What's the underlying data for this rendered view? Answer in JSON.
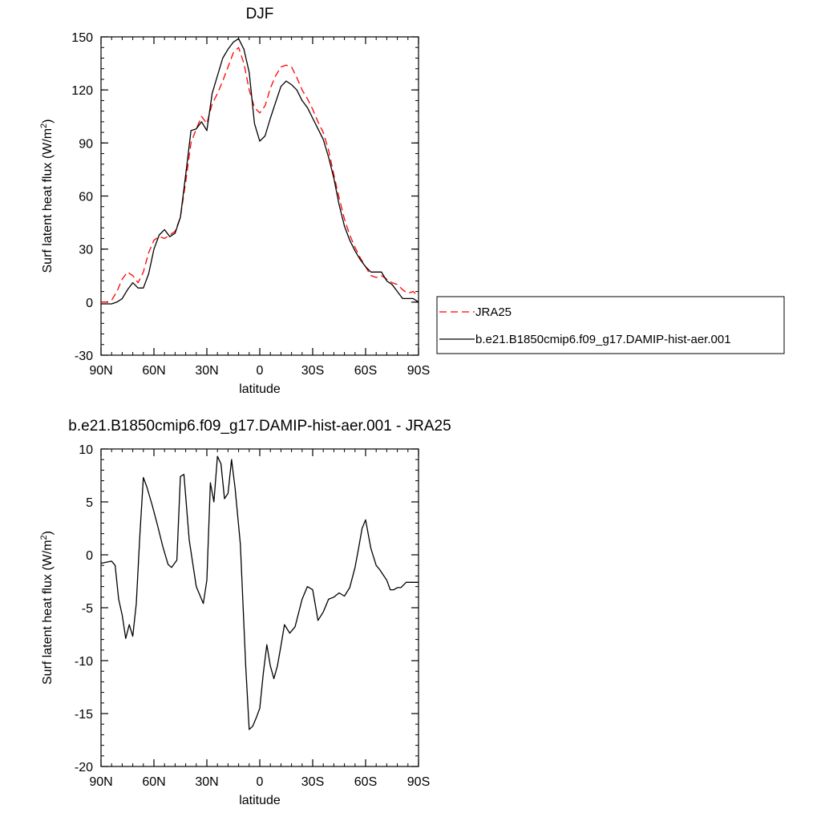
{
  "chart_data": [
    {
      "type": "line",
      "title": "DJF",
      "xlabel": "latitude",
      "ylabel": "Surf latent heat flux (W/m²)",
      "ylabel_parts": {
        "main": "Surf latent heat flux (W/m",
        "sup": "2",
        "end": ")"
      },
      "xlim": [
        90,
        -90
      ],
      "ylim": [
        -30,
        150
      ],
      "x_ticks": [
        90,
        60,
        30,
        0,
        -30,
        -60,
        -90
      ],
      "x_tick_labels": [
        "90N",
        "60N",
        "30N",
        "0",
        "30S",
        "60S",
        "90S"
      ],
      "y_ticks": [
        -30,
        0,
        30,
        60,
        90,
        120,
        150
      ],
      "y_tick_labels": [
        "-30",
        "0",
        "30",
        "60",
        "90",
        "120",
        "150"
      ],
      "legend": "outside-right",
      "series": [
        {
          "name": "JRA25",
          "color": "#ff0000",
          "style": "dashed",
          "x": [
            90,
            87,
            84,
            81,
            78,
            75,
            72,
            69,
            66,
            63,
            60,
            57,
            54,
            51,
            48,
            45,
            42,
            39,
            36,
            33,
            30,
            27,
            24,
            21,
            18,
            15,
            12,
            9,
            6,
            3,
            0,
            -3,
            -6,
            -9,
            -12,
            -15,
            -18,
            -21,
            -24,
            -27,
            -30,
            -33,
            -36,
            -39,
            -42,
            -45,
            -48,
            -51,
            -54,
            -57,
            -60,
            -63,
            -66,
            -69,
            -72,
            -75,
            -78,
            -81,
            -84,
            -87,
            -90
          ],
          "y": [
            0,
            0,
            1,
            6,
            13,
            17,
            15,
            11,
            17,
            28,
            35,
            37,
            36,
            38,
            40,
            48,
            68,
            90,
            98,
            105,
            101,
            112,
            118,
            125,
            133,
            141,
            144,
            135,
            120,
            110,
            107,
            111,
            121,
            128,
            133,
            134,
            133,
            127,
            120,
            115,
            109,
            102,
            96,
            86,
            72,
            59,
            47,
            38,
            31,
            25,
            20,
            15,
            14,
            15,
            13,
            11,
            10,
            7,
            5,
            6,
            3
          ]
        },
        {
          "name": "b.e21.B1850cmip6.f09_g17.DAMIP-hist-aer.001",
          "color": "#000000",
          "style": "solid",
          "x": [
            90,
            87,
            84,
            81,
            78,
            75,
            72,
            69,
            66,
            63,
            60,
            57,
            54,
            51,
            48,
            45,
            42,
            39,
            36,
            33,
            30,
            27,
            24,
            21,
            18,
            15,
            12,
            9,
            6,
            3,
            0,
            -3,
            -6,
            -9,
            -12,
            -15,
            -18,
            -21,
            -24,
            -27,
            -30,
            -33,
            -36,
            -39,
            -42,
            -45,
            -48,
            -51,
            -54,
            -57,
            -60,
            -63,
            -66,
            -69,
            -72,
            -75,
            -78,
            -81,
            -84,
            -87,
            -90
          ],
          "y": [
            -1,
            -1,
            -1,
            0,
            2,
            7,
            11,
            8,
            8,
            16,
            30,
            38,
            41,
            37,
            39,
            48,
            72,
            97,
            98,
            102,
            97,
            118,
            128,
            138,
            143,
            147,
            149,
            143,
            130,
            101,
            91,
            94,
            104,
            113,
            122,
            125,
            123,
            120,
            114,
            110,
            104,
            98,
            92,
            82,
            70,
            55,
            43,
            35,
            29,
            24,
            20,
            17,
            17,
            17,
            12,
            10,
            6,
            2,
            2,
            2,
            0
          ]
        }
      ]
    },
    {
      "type": "line",
      "title": "b.e21.B1850cmip6.f09_g17.DAMIP-hist-aer.001 - JRA25",
      "xlabel": "latitude",
      "ylabel": "Surf latent heat flux (W/m²)",
      "ylabel_parts": {
        "main": "Surf latent heat flux (W/m",
        "sup": "2",
        "end": ")"
      },
      "xlim": [
        90,
        -90
      ],
      "ylim": [
        -20,
        10
      ],
      "x_ticks": [
        90,
        60,
        30,
        0,
        -30,
        -60,
        -90
      ],
      "x_tick_labels": [
        "90N",
        "60N",
        "30N",
        "0",
        "30S",
        "60S",
        "90S"
      ],
      "y_ticks": [
        -20,
        -15,
        -10,
        -5,
        0,
        5,
        10
      ],
      "y_tick_labels": [
        "-20",
        "-15",
        "-10",
        "-5",
        "0",
        "5",
        "10"
      ],
      "series": [
        {
          "color": "#000000",
          "style": "solid",
          "x": [
            90,
            87,
            84,
            82,
            80,
            78,
            76,
            74,
            72,
            70,
            68,
            66,
            64,
            61,
            58,
            55,
            52,
            50,
            47,
            45,
            43,
            40,
            36,
            32,
            30,
            28,
            26,
            24,
            22,
            20,
            18,
            16,
            14,
            11,
            8,
            6,
            4,
            2,
            0,
            -2,
            -4,
            -6,
            -8,
            -10,
            -12,
            -14,
            -17,
            -20,
            -24,
            -27,
            -30,
            -33,
            -36,
            -39,
            -42,
            -45,
            -48,
            -51,
            -54,
            -56,
            -58,
            -60,
            -63,
            -66,
            -68,
            -70,
            -72,
            -74,
            -76,
            -78,
            -80,
            -83,
            -86,
            -88,
            -90
          ],
          "y": [
            -0.8,
            -0.7,
            -0.6,
            -1.0,
            -4.2,
            -5.7,
            -7.9,
            -6.6,
            -7.7,
            -4.6,
            1.8,
            7.3,
            6.4,
            4.7,
            2.8,
            0.8,
            -0.9,
            -1.2,
            -0.5,
            7.4,
            7.6,
            1.4,
            -3.0,
            -4.6,
            -2.4,
            6.8,
            5.0,
            9.3,
            8.6,
            5.3,
            5.8,
            9.0,
            6.3,
            1.0,
            -10.4,
            -16.5,
            -16.2,
            -15.4,
            -14.5,
            -11.2,
            -8.5,
            -10.5,
            -11.7,
            -10.5,
            -8.6,
            -6.6,
            -7.4,
            -6.8,
            -4.2,
            -3.0,
            -3.3,
            -6.2,
            -5.4,
            -4.2,
            -4.0,
            -3.6,
            -3.9,
            -3.1,
            -1.2,
            0.6,
            2.5,
            3.3,
            0.6,
            -1.0,
            -1.4,
            -1.9,
            -2.4,
            -3.3,
            -3.3,
            -3.1,
            -3.1,
            -2.6,
            -2.6,
            -2.6,
            -2.6
          ]
        }
      ]
    }
  ]
}
